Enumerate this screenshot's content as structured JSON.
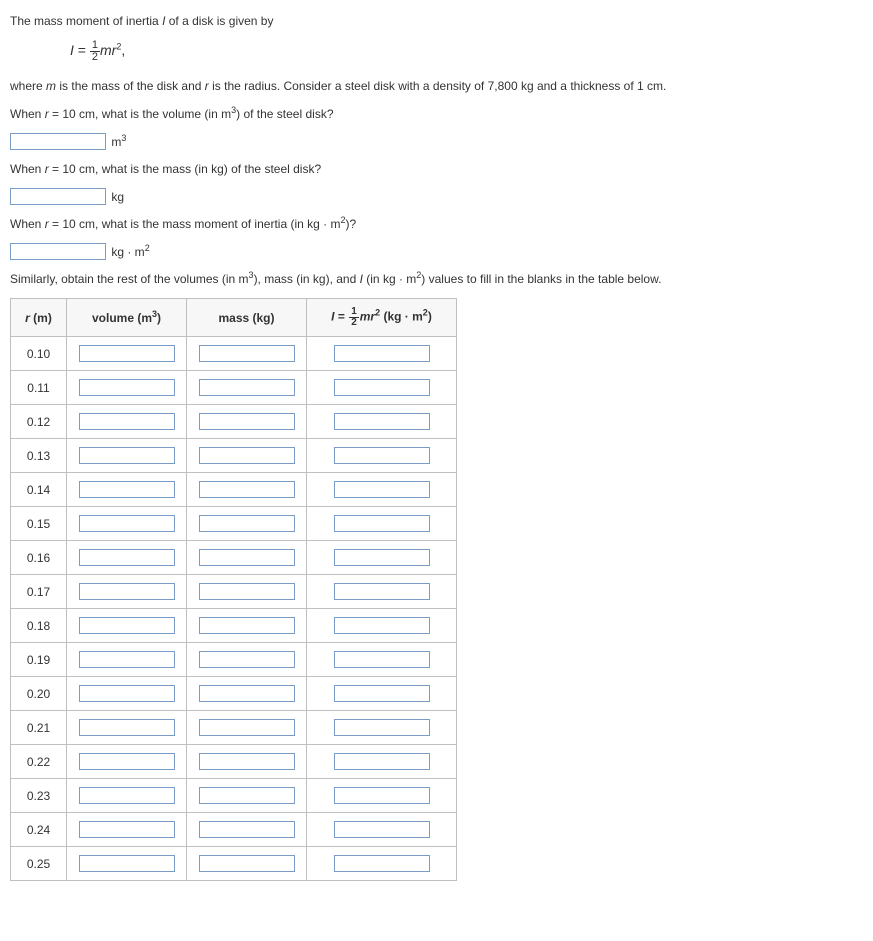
{
  "intro": {
    "line1_a": "The mass moment of inertia ",
    "line1_b": " of a disk is given by",
    "formula_left": "I",
    "formula_equals": " = ",
    "formula_frac_num": "1",
    "formula_frac_den": "2",
    "formula_right_a": "mr",
    "formula_right_b": ",",
    "line2_a": "where ",
    "line2_m": "m",
    "line2_b": " is the mass of the disk and ",
    "line2_r": "r",
    "line2_c": " is the radius. Consider a steel disk with a density of 7,800 kg and a thickness of 1 cm."
  },
  "questions": {
    "q1_a": "When ",
    "q1_r": "r",
    "q1_b": " = 10 cm, what is the volume (in m",
    "q1_c": ") of the steel disk?",
    "q1_unit_a": "m",
    "q2_a": "When ",
    "q2_r": "r",
    "q2_b": " = 10 cm, what is the mass (in kg) of the steel disk?",
    "q2_unit": "kg",
    "q3_a": "When ",
    "q3_r": "r",
    "q3_b": " = 10 cm, what is the mass moment of inertia (in kg · m",
    "q3_c": ")?",
    "q3_unit_a": "kg · m",
    "instruct_a": "Similarly, obtain the rest of the volumes (in m",
    "instruct_b": "), mass (in kg), and ",
    "instruct_I": "I",
    "instruct_c": " (in kg · m",
    "instruct_d": ") values to fill in the blanks in the table below."
  },
  "table": {
    "headers": {
      "r_a": "r",
      "r_b": " (m)",
      "vol_a": "volume (m",
      "vol_b": ")",
      "mass": "mass (kg)",
      "i_left": "I",
      "i_eq": " = ",
      "i_num": "1",
      "i_den": "2",
      "i_mr": "mr",
      "i_unit_a": " (kg · m",
      "i_unit_b": ")"
    },
    "rows": [
      "0.10",
      "0.11",
      "0.12",
      "0.13",
      "0.14",
      "0.15",
      "0.16",
      "0.17",
      "0.18",
      "0.19",
      "0.20",
      "0.21",
      "0.22",
      "0.23",
      "0.24",
      "0.25"
    ]
  },
  "style": {
    "input_border": "#7a9cc6",
    "table_border": "#bfbfbf",
    "header_bg": "#f7f7f7",
    "text_color": "#333333"
  }
}
